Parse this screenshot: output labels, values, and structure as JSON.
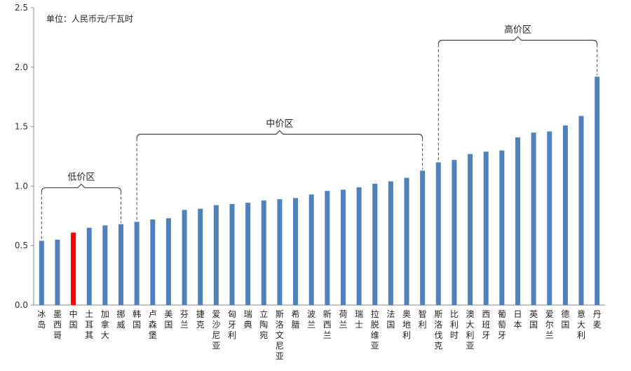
{
  "chart_data": {
    "type": "bar",
    "unit_label": "单位：人民币元/千瓦时",
    "ylim": [
      0,
      2.5
    ],
    "yticks": [
      "0.0",
      "0.5",
      "1.0",
      "1.5",
      "2.0",
      "2.5"
    ],
    "grid": false,
    "categories": [
      "冰岛",
      "墨西哥",
      "中国",
      "土耳其",
      "加拿大",
      "挪威",
      "韩国",
      "卢森堡",
      "美国",
      "芬兰",
      "捷克",
      "爱沙尼亚",
      "匈牙利",
      "瑞典",
      "立陶宛",
      "斯洛文尼亚",
      "希腊",
      "波兰",
      "新西兰",
      "荷兰",
      "瑞士",
      "拉脱维亚",
      "法国",
      "奥地利",
      "智利",
      "斯洛伐克",
      "比利时",
      "澳大利亚",
      "西班牙",
      "葡萄牙",
      "日本",
      "英国",
      "爱尔兰",
      "德国",
      "意大利",
      "丹麦"
    ],
    "values": [
      0.54,
      0.55,
      0.61,
      0.65,
      0.67,
      0.68,
      0.7,
      0.72,
      0.73,
      0.8,
      0.81,
      0.84,
      0.85,
      0.86,
      0.88,
      0.89,
      0.9,
      0.93,
      0.96,
      0.97,
      0.99,
      1.02,
      1.04,
      1.07,
      1.13,
      1.2,
      1.22,
      1.27,
      1.29,
      1.3,
      1.41,
      1.45,
      1.46,
      1.51,
      1.59,
      1.92
    ],
    "bar_color": "#4f81bd",
    "highlight_index": 2,
    "highlight_color": "#ff0000",
    "zones": [
      {
        "label": "低价区",
        "start": 0,
        "end": 5
      },
      {
        "label": "中价区",
        "start": 6,
        "end": 24
      },
      {
        "label": "高价区",
        "start": 25,
        "end": 35
      }
    ]
  }
}
